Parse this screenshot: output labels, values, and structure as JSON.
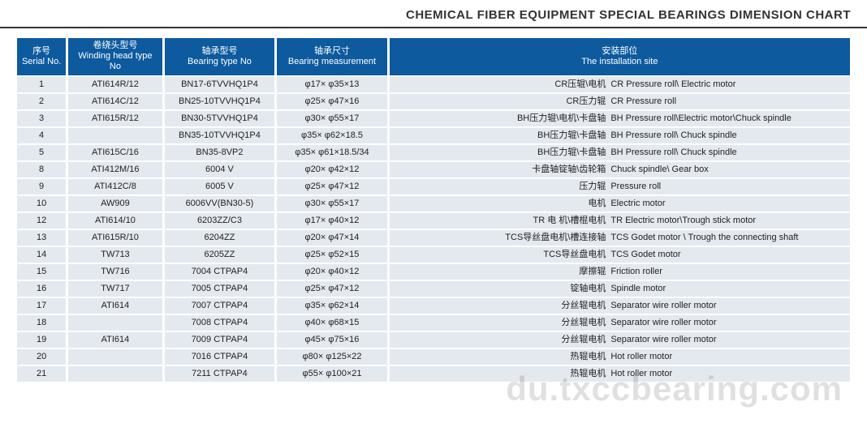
{
  "title": "CHEMICAL FIBER EQUIPMENT SPECIAL BEARINGS DIMENSION CHART",
  "watermark": "du.txccbearing.com",
  "columns": [
    {
      "cn": "序号",
      "en": "Serial No."
    },
    {
      "cn": "卷绕头型号",
      "en": "Winding head type No"
    },
    {
      "cn": "轴承型号",
      "en": "Bearing type No"
    },
    {
      "cn": "轴承尺寸",
      "en": "Bearing measurement"
    },
    {
      "cn": "安装部位",
      "en": "The installation site"
    }
  ],
  "rows": [
    {
      "no": "1",
      "winding": "ATI614R/12",
      "bearing": "BN17-6TVVHQ1P4",
      "meas": "φ17× φ35×13",
      "site_cn": "CR压辊\\电机",
      "site_en": "CR Pressure roll\\ Electric motor"
    },
    {
      "no": "2",
      "winding": "ATI614C/12",
      "bearing": "BN25-10TVVHQ1P4",
      "meas": "φ25× φ47×16",
      "site_cn": "CR压力辊",
      "site_en": "CR Pressure roll"
    },
    {
      "no": "3",
      "winding": "ATI615R/12",
      "bearing": "BN30-5TVVHQ1P4",
      "meas": "φ30× φ55×17",
      "site_cn": "BH压力辊\\电机\\卡盘轴",
      "site_en": "BH Pressure roll\\Electric motor\\Chuck spindle"
    },
    {
      "no": "4",
      "winding": "",
      "bearing": "BN35-10TVVHQ1P4",
      "meas": "φ35× φ62×18.5",
      "site_cn": "BH压力辊\\卡盘轴",
      "site_en": "BH Pressure roll\\ Chuck spindle"
    },
    {
      "no": "5",
      "winding": "ATI615C/16",
      "bearing": "BN35-8VP2",
      "meas": "φ35× φ61×18.5/34",
      "site_cn": "BH压力辊\\卡盘轴",
      "site_en": "BH Pressure roll\\ Chuck spindle"
    },
    {
      "no": "8",
      "winding": "ATI412M/16",
      "bearing": "6004 V",
      "meas": "φ20× φ42×12",
      "site_cn": "卡盘轴锭轴\\齿轮箱",
      "site_en": "Chuck spindle\\ Gear box"
    },
    {
      "no": "9",
      "winding": "ATI412C/8",
      "bearing": "6005 V",
      "meas": "φ25× φ47×12",
      "site_cn": "压力辊",
      "site_en": "Pressure roll"
    },
    {
      "no": "10",
      "winding": "AW909",
      "bearing": "6006VV(BN30-5)",
      "meas": "φ30× φ55×17",
      "site_cn": "电机",
      "site_en": "Electric motor"
    },
    {
      "no": "12",
      "winding": "ATI614/10",
      "bearing": "6203ZZ/C3",
      "meas": "φ17× φ40×12",
      "site_cn": "TR 电 机\\槽棍电机",
      "site_en": "TR Electric motor\\Trough stick motor"
    },
    {
      "no": "13",
      "winding": "ATI615R/10",
      "bearing": "6204ZZ",
      "meas": "φ20× φ47×14",
      "site_cn": "TCS导丝盘电机\\槽连接轴",
      "site_en": "TCS Godet motor \\ Trough the connecting shaft"
    },
    {
      "no": "14",
      "winding": "TW713",
      "bearing": "6205ZZ",
      "meas": "φ25× φ52×15",
      "site_cn": "TCS导丝盘电机",
      "site_en": "TCS Godet motor"
    },
    {
      "no": "15",
      "winding": "TW716",
      "bearing": "7004 CTPAP4",
      "meas": "φ20× φ40×12",
      "site_cn": "摩擦辊",
      "site_en": "Friction roller"
    },
    {
      "no": "16",
      "winding": "TW717",
      "bearing": "7005 CTPAP4",
      "meas": "φ25× φ47×12",
      "site_cn": "锭轴电机",
      "site_en": "Spindle motor"
    },
    {
      "no": "17",
      "winding": "ATI614",
      "bearing": "7007 CTPAP4",
      "meas": "φ35× φ62×14",
      "site_cn": "分丝辊电机",
      "site_en": "Separator wire roller motor"
    },
    {
      "no": "18",
      "winding": "",
      "bearing": "7008 CTPAP4",
      "meas": "φ40× φ68×15",
      "site_cn": "分丝辊电机",
      "site_en": "Separator wire roller motor"
    },
    {
      "no": "19",
      "winding": "ATI614",
      "bearing": "7009 CTPAP4",
      "meas": "φ45× φ75×16",
      "site_cn": "分丝辊电机",
      "site_en": "Separator wire roller motor"
    },
    {
      "no": "20",
      "winding": "",
      "bearing": "7016 CTPAP4",
      "meas": "φ80× φ125×22",
      "site_cn": "热辊电机",
      "site_en": "Hot roller motor"
    },
    {
      "no": "21",
      "winding": "",
      "bearing": "7211 CTPAP4",
      "meas": "φ55× φ100×21",
      "site_cn": "热辊电机",
      "site_en": "Hot roller motor"
    }
  ]
}
